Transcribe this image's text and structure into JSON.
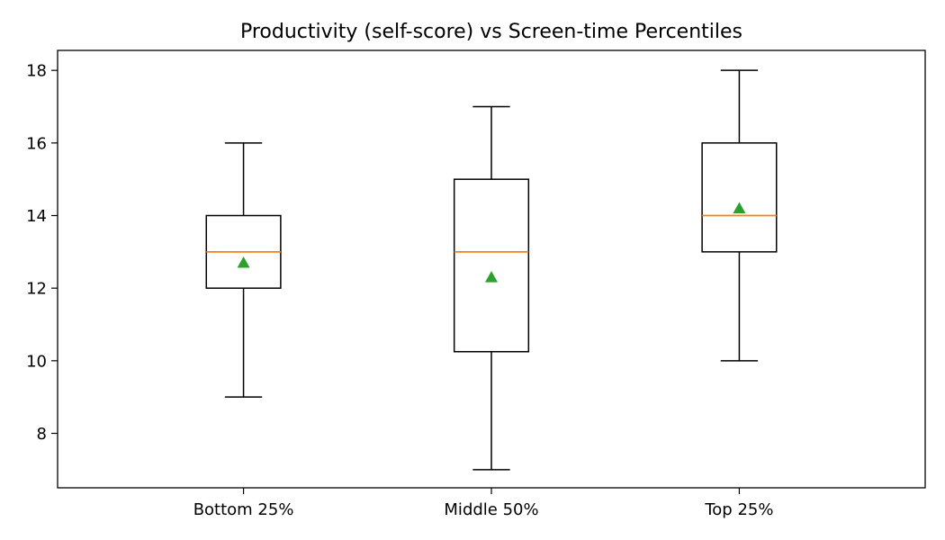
{
  "chart_data": {
    "type": "box",
    "title": "Productivity (self-score) vs Screen-time Percentiles",
    "xlabel": "",
    "ylabel": "",
    "categories": [
      "Bottom 25%",
      "Middle 50%",
      "Top 25%"
    ],
    "boxes": [
      {
        "category": "Bottom 25%",
        "whisker_low": 9,
        "q1": 12,
        "median": 13,
        "q3": 14,
        "whisker_high": 16,
        "mean": 12.7
      },
      {
        "category": "Middle 50%",
        "whisker_low": 7,
        "q1": 10.25,
        "median": 13,
        "q3": 15,
        "whisker_high": 17,
        "mean": 12.3
      },
      {
        "category": "Top 25%",
        "whisker_low": 10,
        "q1": 13,
        "median": 14,
        "q3": 16,
        "whisker_high": 18,
        "mean": 14.2
      }
    ],
    "ylim": [
      6.5,
      18.55
    ],
    "yticks": [
      8,
      10,
      12,
      14,
      16,
      18
    ],
    "ytick_labels": [
      "8",
      "10",
      "12",
      "14",
      "16",
      "18"
    ],
    "grid": false,
    "legend": "none",
    "colors": {
      "box": "#000000",
      "median": "#ff7f0e",
      "mean_marker": "#2ca02c"
    }
  }
}
